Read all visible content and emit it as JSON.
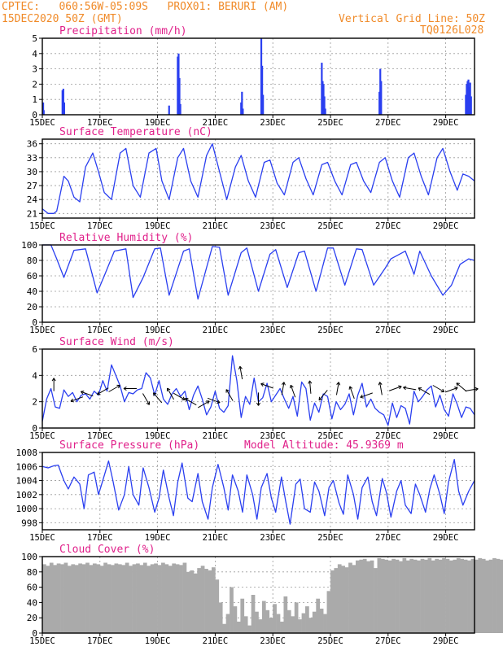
{
  "header": {
    "line1": "CPTEC:   060:56W-05:09S   PROX01: BERURI (AM)",
    "line2": "15DEC2020 50Z (GMT)",
    "right1": "Vertical Grid Line: 50Z",
    "right2": "TQ0126L028"
  },
  "colors": {
    "header": "#f08a28",
    "title": "#e0208a",
    "line": "#2a3ff0",
    "bar": "#2a3ff0",
    "cloud": "#aaaaaa",
    "grid": "#9a9a9a"
  },
  "x_tick_labels": [
    "15DEC",
    "17DEC",
    "19DEC",
    "21DEC",
    "23DEC",
    "25DEC",
    "27DEC",
    "29DEC"
  ],
  "x_tick_days": [
    0,
    2,
    4,
    6,
    8,
    10,
    12,
    14
  ],
  "x_range_days": [
    0,
    15
  ],
  "chart_data": [
    {
      "type": "bar",
      "title": "Precipitation (mm/h)",
      "ylim": [
        0,
        5
      ],
      "yticks": [
        0,
        1,
        2,
        3,
        4,
        5
      ],
      "x_days": [
        0.03,
        0.05,
        0.7,
        0.73,
        0.76,
        4.4,
        4.7,
        4.73,
        4.76,
        4.79,
        6.9,
        6.93,
        6.96,
        7.6,
        7.63,
        7.66,
        9.7,
        9.73,
        9.76,
        9.79,
        9.82,
        11.7,
        11.73,
        11.76,
        14.7,
        14.73,
        14.76,
        14.79,
        14.82,
        14.85,
        14.88
      ],
      "values": [
        0.8,
        0.3,
        1.6,
        1.7,
        0.8,
        0.6,
        3.8,
        4.0,
        2.4,
        0.7,
        0.8,
        1.5,
        0.4,
        5.0,
        3.2,
        1.3,
        3.4,
        2.2,
        2.0,
        1.2,
        0.4,
        1.5,
        3.0,
        2.2,
        1.3,
        2.0,
        2.2,
        2.3,
        1.8,
        2.1,
        1.2
      ]
    },
    {
      "type": "line",
      "title": "Surface Temperature (nC)",
      "ylim": [
        20,
        37
      ],
      "yticks": [
        21,
        24,
        27,
        30,
        33,
        36
      ],
      "x": [
        0,
        0.2,
        0.4,
        0.5,
        0.75,
        0.9,
        1.1,
        1.3,
        1.5,
        1.75,
        1.95,
        2.15,
        2.4,
        2.7,
        2.9,
        3.15,
        3.4,
        3.7,
        3.95,
        4.15,
        4.4,
        4.7,
        4.9,
        5.15,
        5.4,
        5.7,
        5.9,
        6.15,
        6.4,
        6.7,
        6.9,
        7.15,
        7.4,
        7.7,
        7.9,
        8.15,
        8.4,
        8.7,
        8.9,
        9.15,
        9.4,
        9.7,
        9.9,
        10.15,
        10.4,
        10.7,
        10.9,
        11.15,
        11.4,
        11.7,
        11.9,
        12.15,
        12.4,
        12.7,
        12.9,
        13.15,
        13.4,
        13.7,
        13.9,
        14.15,
        14.4,
        14.6,
        14.8,
        15
      ],
      "y": [
        22,
        21,
        21,
        21.5,
        29,
        28,
        24.5,
        23.5,
        31,
        34,
        30,
        25.5,
        24,
        34,
        35,
        27,
        24.5,
        34,
        35,
        28,
        24,
        33,
        35,
        28,
        24.5,
        33.5,
        36,
        30,
        24,
        31,
        33.5,
        28,
        24.5,
        32,
        32.5,
        27.5,
        25,
        32,
        33,
        28.5,
        25,
        31.5,
        32,
        28,
        25,
        31.5,
        32,
        28,
        25.5,
        32,
        33,
        28,
        24.5,
        33,
        34,
        29,
        25,
        33,
        35,
        30,
        26,
        29.5,
        29,
        28
      ]
    },
    {
      "type": "line",
      "title": "Relative Humidity (%)",
      "ylim": [
        0,
        100
      ],
      "yticks": [
        0,
        20,
        40,
        60,
        80,
        100
      ],
      "x": [
        0,
        0.3,
        0.5,
        0.75,
        1.1,
        1.5,
        1.9,
        2.15,
        2.5,
        2.9,
        3.15,
        3.5,
        3.9,
        4.1,
        4.4,
        4.9,
        5.1,
        5.4,
        5.9,
        6.15,
        6.45,
        6.9,
        7.1,
        7.5,
        7.9,
        8.1,
        8.5,
        8.9,
        9.1,
        9.5,
        9.9,
        10.1,
        10.5,
        10.9,
        11.1,
        11.5,
        11.9,
        12.1,
        12.6,
        12.9,
        13.1,
        13.5,
        13.9,
        14.2,
        14.5,
        14.8,
        15
      ],
      "y": [
        100,
        100,
        82,
        58,
        93,
        95,
        38,
        60,
        92,
        95,
        32,
        58,
        95,
        96,
        35,
        92,
        95,
        30,
        98,
        97,
        35,
        90,
        96,
        40,
        88,
        94,
        45,
        90,
        92,
        40,
        96,
        96,
        48,
        95,
        94,
        48,
        70,
        82,
        92,
        62,
        92,
        60,
        35,
        48,
        75,
        82,
        80
      ]
    },
    {
      "type": "line",
      "title": "Surface Wind (m/s)",
      "ylim": [
        0,
        6
      ],
      "yticks": [
        0,
        2,
        4,
        6
      ],
      "x": [
        0,
        0.15,
        0.3,
        0.45,
        0.6,
        0.75,
        0.9,
        1.05,
        1.2,
        1.35,
        1.5,
        1.65,
        1.8,
        1.95,
        2.1,
        2.25,
        2.4,
        2.55,
        2.7,
        2.85,
        3.0,
        3.15,
        3.3,
        3.45,
        3.6,
        3.75,
        3.9,
        4.05,
        4.2,
        4.35,
        4.5,
        4.65,
        4.8,
        4.95,
        5.1,
        5.25,
        5.4,
        5.55,
        5.7,
        5.85,
        6.0,
        6.15,
        6.3,
        6.45,
        6.6,
        6.75,
        6.9,
        7.05,
        7.2,
        7.35,
        7.5,
        7.65,
        7.8,
        7.95,
        8.1,
        8.25,
        8.4,
        8.55,
        8.7,
        8.85,
        9.0,
        9.15,
        9.3,
        9.45,
        9.6,
        9.75,
        9.9,
        10.05,
        10.2,
        10.35,
        10.5,
        10.65,
        10.8,
        10.95,
        11.1,
        11.25,
        11.4,
        11.55,
        11.7,
        11.85,
        12.0,
        12.15,
        12.3,
        12.45,
        12.6,
        12.75,
        12.9,
        13.05,
        13.2,
        13.35,
        13.5,
        13.65,
        13.8,
        13.95,
        14.1,
        14.25,
        14.4,
        14.55,
        14.7,
        14.85,
        15
      ],
      "y": [
        0.5,
        2.2,
        3.0,
        1.6,
        1.5,
        2.9,
        2.4,
        2.7,
        2.0,
        2.5,
        2.6,
        2.2,
        2.8,
        2.5,
        3.6,
        2.8,
        4.8,
        4.0,
        3.2,
        2.0,
        2.7,
        2.6,
        2.9,
        3.0,
        4.2,
        3.8,
        2.5,
        3.6,
        2.2,
        1.8,
        2.6,
        3.0,
        2.4,
        2.8,
        1.4,
        2.5,
        3.2,
        2.2,
        1.0,
        1.6,
        2.8,
        1.5,
        1.2,
        1.7,
        5.5,
        3.6,
        0.8,
        2.4,
        1.8,
        3.8,
        2.0,
        2.3,
        3.4,
        2.0,
        2.5,
        3.0,
        2.2,
        1.5,
        2.4,
        0.9,
        3.5,
        3.0,
        0.6,
        1.9,
        1.2,
        2.6,
        2.4,
        0.7,
        2.0,
        1.4,
        1.8,
        2.6,
        1.0,
        2.5,
        3.4,
        1.6,
        2.2,
        1.5,
        1.2,
        1.0,
        0.2,
        1.9,
        0.8,
        1.7,
        1.5,
        0.3,
        2.8,
        2.0,
        2.4,
        2.9,
        3.2,
        1.6,
        2.5,
        1.4,
        0.9,
        2.6,
        1.8,
        0.8,
        1.6,
        1.5,
        1.0
      ],
      "arrow_x_days": [
        0.4,
        1.2,
        1.55,
        2.1,
        2.5,
        3.05,
        3.6,
        4.0,
        4.45,
        4.75,
        5.15,
        5.6,
        5.95,
        6.5,
        6.9,
        7.5,
        7.8,
        8.35,
        8.7,
        9.3,
        9.75,
        10.25,
        10.75,
        11.25,
        11.75,
        12.25,
        12.75,
        13.25,
        13.75,
        14.2,
        14.55,
        14.9
      ],
      "arrow_y": [
        3.3,
        2.2,
        2.6,
        2.8,
        3.0,
        3.0,
        2.2,
        2.3,
        2.6,
        2.4,
        2.0,
        1.8,
        2.1,
        2.5,
        4.2,
        2.2,
        3.2,
        3.0,
        2.8,
        3.1,
        2.5,
        3.0,
        2.7,
        2.5,
        3.0,
        3.0,
        3.0,
        2.8,
        3.0,
        2.9,
        3.1,
        2.9
      ],
      "arrow_dir_deg": [
        90,
        200,
        160,
        210,
        30,
        180,
        300,
        130,
        120,
        330,
        150,
        30,
        340,
        120,
        100,
        270,
        160,
        80,
        110,
        95,
        230,
        80,
        110,
        200,
        100,
        20,
        170,
        150,
        330,
        20,
        140,
        10
      ]
    },
    {
      "type": "line",
      "title": "Surface Pressure (hPa)",
      "annotation": "Model Altitude: 45.9369 m",
      "ylim": [
        997,
        1008
      ],
      "yticks": [
        998,
        1000,
        1002,
        1004,
        1006,
        1008
      ],
      "x": [
        0,
        0.2,
        0.4,
        0.55,
        0.75,
        0.9,
        1.1,
        1.3,
        1.45,
        1.6,
        1.8,
        1.95,
        2.1,
        2.3,
        2.45,
        2.65,
        2.85,
        3.0,
        3.15,
        3.35,
        3.5,
        3.7,
        3.9,
        4.05,
        4.2,
        4.4,
        4.55,
        4.7,
        4.85,
        5.05,
        5.2,
        5.4,
        5.55,
        5.75,
        5.9,
        6.1,
        6.3,
        6.45,
        6.6,
        6.8,
        6.95,
        7.1,
        7.3,
        7.45,
        7.6,
        7.8,
        7.95,
        8.1,
        8.3,
        8.45,
        8.6,
        8.8,
        8.95,
        9.1,
        9.3,
        9.45,
        9.6,
        9.8,
        9.95,
        10.1,
        10.3,
        10.45,
        10.6,
        10.8,
        10.95,
        11.1,
        11.3,
        11.45,
        11.6,
        11.8,
        11.95,
        12.1,
        12.3,
        12.45,
        12.6,
        12.8,
        12.95,
        13.1,
        13.3,
        13.45,
        13.6,
        13.8,
        13.95,
        14.1,
        14.3,
        14.45,
        14.6,
        14.8,
        15
      ],
      "y": [
        1006.0,
        1005.8,
        1006.1,
        1006.2,
        1004.0,
        1002.8,
        1004.5,
        1003.5,
        1000.0,
        1004.8,
        1005.2,
        1002.0,
        1004.0,
        1006.8,
        1004.0,
        999.8,
        1002.0,
        1006.0,
        1002.0,
        1000.5,
        1005.8,
        1003.0,
        999.5,
        1001.5,
        1005.5,
        1001.5,
        999.0,
        1003.8,
        1006.5,
        1001.5,
        1001.0,
        1005.0,
        1001.0,
        998.5,
        1003.0,
        1006.3,
        1003.0,
        999.8,
        1004.8,
        1002.5,
        999.5,
        1004.8,
        1002.0,
        998.5,
        1003.0,
        1005.0,
        1001.5,
        999.5,
        1004.5,
        1001.0,
        997.8,
        1003.5,
        1004.2,
        1000.0,
        999.5,
        1003.8,
        1002.5,
        999.0,
        1003.0,
        1004.0,
        1000.8,
        999.2,
        1004.8,
        1002.0,
        998.5,
        1003.0,
        1004.5,
        1001.0,
        999.0,
        1004.3,
        1002.2,
        998.8,
        1002.5,
        1004.0,
        1000.5,
        999.3,
        1003.5,
        1002.0,
        999.5,
        1002.8,
        1004.8,
        1002.0,
        999.3,
        1003.8,
        1007.0,
        1002.5,
        1000.5,
        1002.5,
        1004.0
      ]
    },
    {
      "type": "bar",
      "title": "Cloud Cover (%)",
      "ylim": [
        0,
        100
      ],
      "yticks": [
        0,
        20,
        40,
        60,
        80,
        100
      ],
      "x_step_days": 0.125,
      "values": [
        90,
        88,
        92,
        89,
        91,
        90,
        92,
        88,
        90,
        89,
        91,
        90,
        92,
        89,
        91,
        90,
        88,
        92,
        90,
        89,
        91,
        90,
        89,
        92,
        88,
        90,
        91,
        89,
        92,
        88,
        90,
        91,
        89,
        92,
        90,
        88,
        91,
        90,
        89,
        92,
        80,
        82,
        78,
        85,
        88,
        84,
        82,
        86,
        70,
        40,
        12,
        25,
        60,
        35,
        15,
        45,
        22,
        10,
        50,
        28,
        18,
        42,
        30,
        20,
        38,
        25,
        15,
        48,
        30,
        22,
        40,
        18,
        26,
        35,
        20,
        28,
        45,
        32,
        25,
        55,
        82,
        85,
        90,
        88,
        86,
        92,
        89,
        95,
        96,
        97,
        94,
        95,
        85,
        98,
        97,
        96,
        95,
        97,
        96,
        94,
        98,
        95,
        97,
        96,
        95,
        97,
        96,
        98,
        95,
        97,
        96,
        98,
        97,
        95,
        96,
        98,
        97,
        96,
        95,
        97,
        96,
        98,
        97,
        95,
        96,
        98,
        97,
        96,
        95,
        97,
        96,
        98,
        97,
        95,
        96,
        98,
        97,
        96,
        95,
        97
      ]
    }
  ]
}
